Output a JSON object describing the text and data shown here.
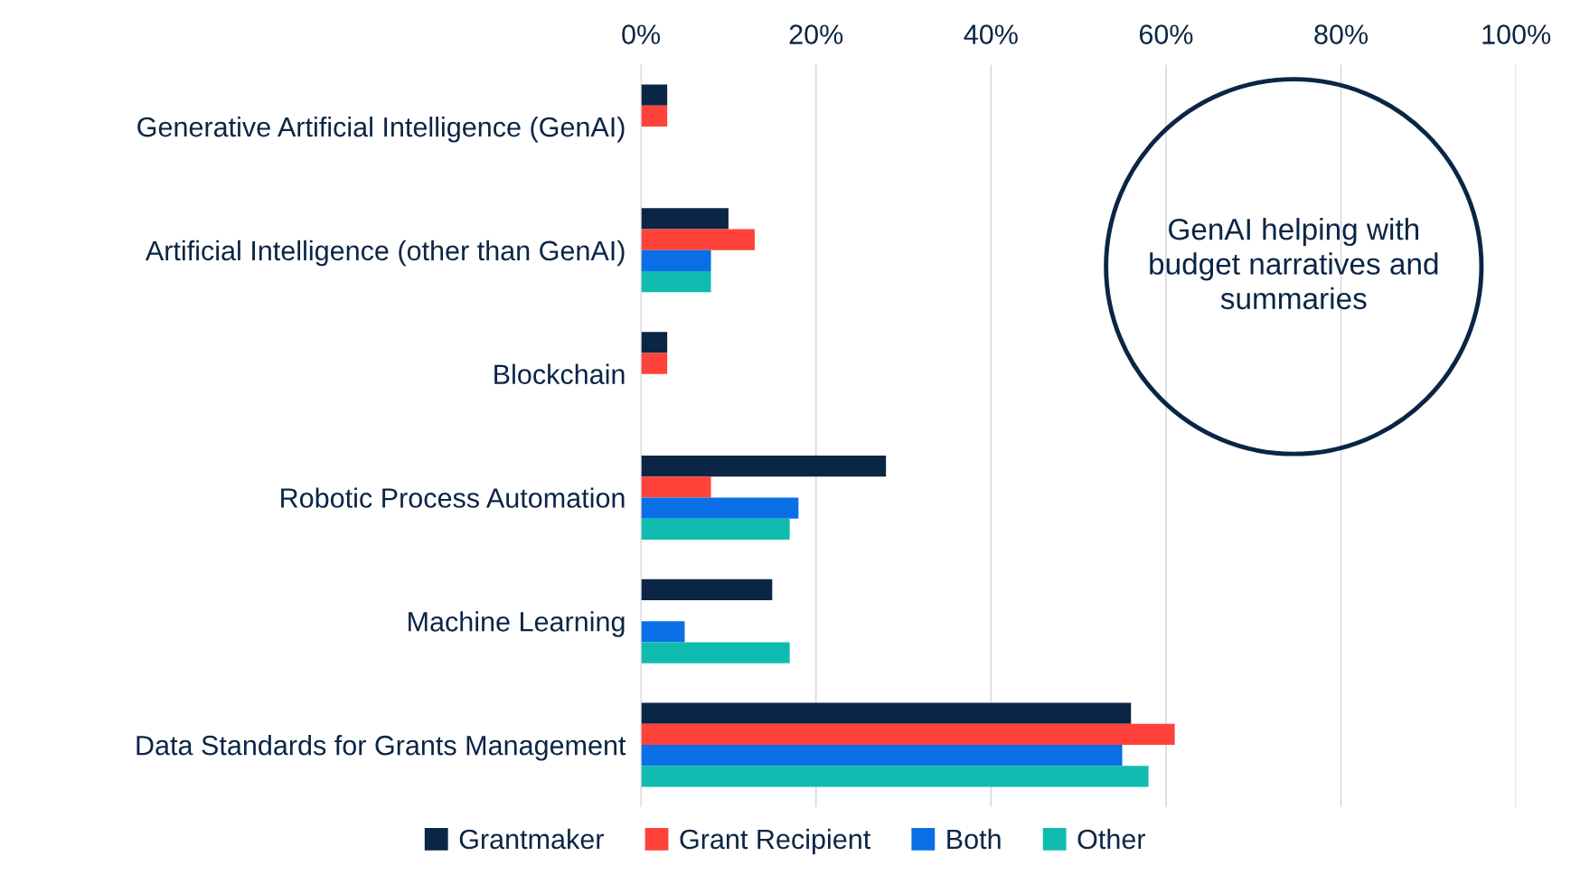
{
  "chart_data": {
    "type": "bar",
    "orientation": "horizontal",
    "categories": [
      "Generative Artificial Intelligence (GenAI)",
      "Artificial Intelligence (other than GenAI)",
      "Blockchain",
      "Robotic Process Automation",
      "Machine Learning",
      "Data Standards for Grants Management"
    ],
    "series": [
      {
        "name": "Grantmaker",
        "color": "#0b2545",
        "values": [
          3,
          10,
          3,
          28,
          15,
          56
        ]
      },
      {
        "name": "Grant Recipient",
        "color": "#ff433a",
        "values": [
          3,
          13,
          3,
          8,
          null,
          61
        ]
      },
      {
        "name": "Both",
        "color": "#0a6fe6",
        "values": [
          null,
          8,
          null,
          18,
          5,
          55
        ]
      },
      {
        "name": "Other",
        "color": "#10bcb0",
        "values": [
          null,
          8,
          null,
          17,
          17,
          58
        ]
      }
    ],
    "xlim": [
      0,
      100
    ],
    "xticks": [
      {
        "value": 0,
        "label": "0%"
      },
      {
        "value": 20,
        "label": "20%"
      },
      {
        "value": 40,
        "label": "40%"
      },
      {
        "value": 60,
        "label": "60%"
      },
      {
        "value": 80,
        "label": "80%"
      },
      {
        "value": 100,
        "label": "100%"
      }
    ],
    "grid": "x",
    "legend": "bottom",
    "annotations": [
      "GenAI helping with budget narratives and summaries"
    ]
  }
}
